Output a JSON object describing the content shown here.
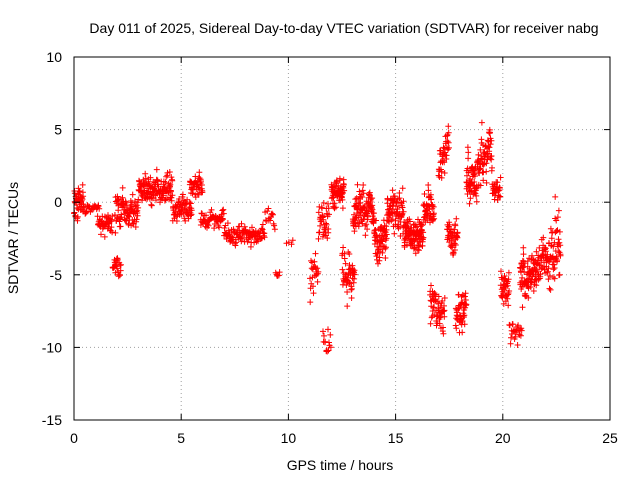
{
  "chart_data": {
    "type": "scatter",
    "title": "Day 011 of 2025, Sidereal Day-to-day VTEC variation (SDTVAR) for receiver nabg",
    "xlabel": "GPS time / hours",
    "ylabel": "SDTVAR / TECUs",
    "xlim": [
      0,
      25
    ],
    "ylim": [
      -15,
      10
    ],
    "xticks": [
      0,
      5,
      10,
      15,
      20,
      25
    ],
    "yticks": [
      -15,
      -10,
      -5,
      0,
      5,
      10
    ],
    "grid": true,
    "marker": "+",
    "color": "#ff0000",
    "series": [
      {
        "name": "SDTVAR",
        "segments": [
          {
            "x0": 0.0,
            "x1": 0.45,
            "center": 0.0,
            "spread": 2.2,
            "n": 45
          },
          {
            "x0": 0.45,
            "x1": 1.2,
            "center": -0.5,
            "spread": 0.8,
            "n": 25
          },
          {
            "x0": 1.1,
            "x1": 1.8,
            "center": -1.5,
            "spread": 1.6,
            "n": 45
          },
          {
            "x0": 1.8,
            "x1": 2.2,
            "center": -4.5,
            "spread": 1.2,
            "n": 25
          },
          {
            "x0": 1.9,
            "x1": 3.0,
            "center": -0.5,
            "spread": 2.6,
            "n": 90
          },
          {
            "x0": 3.0,
            "x1": 4.6,
            "center": 0.8,
            "spread": 2.0,
            "n": 140
          },
          {
            "x0": 4.6,
            "x1": 5.5,
            "center": -0.5,
            "spread": 1.6,
            "n": 70
          },
          {
            "x0": 5.4,
            "x1": 6.0,
            "center": 1.2,
            "spread": 1.6,
            "n": 45
          },
          {
            "x0": 5.9,
            "x1": 7.0,
            "center": -1.2,
            "spread": 1.3,
            "n": 60
          },
          {
            "x0": 7.0,
            "x1": 8.9,
            "center": -2.3,
            "spread": 1.3,
            "n": 110
          },
          {
            "x0": 8.9,
            "x1": 9.4,
            "center": -1.0,
            "spread": 1.5,
            "n": 15
          },
          {
            "x0": 9.4,
            "x1": 9.6,
            "center": -4.8,
            "spread": 1.0,
            "n": 6
          },
          {
            "x0": 9.9,
            "x1": 10.3,
            "center": -2.8,
            "spread": 0.4,
            "n": 4
          },
          {
            "x0": 11.0,
            "x1": 11.4,
            "center": -5.0,
            "spread": 2.8,
            "n": 25
          },
          {
            "x0": 11.4,
            "x1": 11.9,
            "center": -1.0,
            "spread": 3.0,
            "n": 40
          },
          {
            "x0": 11.6,
            "x1": 12.0,
            "center": -9.5,
            "spread": 2.2,
            "n": 14
          },
          {
            "x0": 12.0,
            "x1": 12.6,
            "center": 0.8,
            "spread": 2.0,
            "n": 70
          },
          {
            "x0": 12.5,
            "x1": 13.1,
            "center": -5.0,
            "spread": 3.4,
            "n": 50
          },
          {
            "x0": 13.0,
            "x1": 14.0,
            "center": -0.5,
            "spread": 2.6,
            "n": 110
          },
          {
            "x0": 14.0,
            "x1": 14.6,
            "center": -2.5,
            "spread": 2.6,
            "n": 70
          },
          {
            "x0": 14.6,
            "x1": 15.4,
            "center": -0.5,
            "spread": 3.0,
            "n": 80
          },
          {
            "x0": 15.4,
            "x1": 16.3,
            "center": -2.3,
            "spread": 2.0,
            "n": 110
          },
          {
            "x0": 16.3,
            "x1": 16.8,
            "center": -0.5,
            "spread": 2.5,
            "n": 50
          },
          {
            "x0": 16.6,
            "x1": 17.3,
            "center": -7.5,
            "spread": 2.8,
            "n": 60
          },
          {
            "x0": 17.0,
            "x1": 17.5,
            "center": 3.0,
            "spread": 3.2,
            "n": 40
          },
          {
            "x0": 17.4,
            "x1": 17.9,
            "center": -2.5,
            "spread": 2.4,
            "n": 50
          },
          {
            "x0": 17.8,
            "x1": 18.3,
            "center": -7.5,
            "spread": 3.0,
            "n": 50
          },
          {
            "x0": 18.3,
            "x1": 18.8,
            "center": 1.5,
            "spread": 3.2,
            "n": 60
          },
          {
            "x0": 18.8,
            "x1": 19.5,
            "center": 3.2,
            "spread": 3.2,
            "n": 70
          },
          {
            "x0": 19.5,
            "x1": 19.9,
            "center": 1.0,
            "spread": 1.8,
            "n": 30
          },
          {
            "x0": 19.9,
            "x1": 20.3,
            "center": -6.0,
            "spread": 3.0,
            "n": 40
          },
          {
            "x0": 20.3,
            "x1": 20.9,
            "center": -9.0,
            "spread": 1.5,
            "n": 25
          },
          {
            "x0": 20.8,
            "x1": 21.6,
            "center": -5.2,
            "spread": 3.0,
            "n": 90
          },
          {
            "x0": 21.6,
            "x1": 22.2,
            "center": -4.2,
            "spread": 3.0,
            "n": 55
          },
          {
            "x0": 22.2,
            "x1": 22.7,
            "center": -3.5,
            "spread": 4.5,
            "n": 50
          }
        ],
        "seed": 20250111
      }
    ]
  }
}
